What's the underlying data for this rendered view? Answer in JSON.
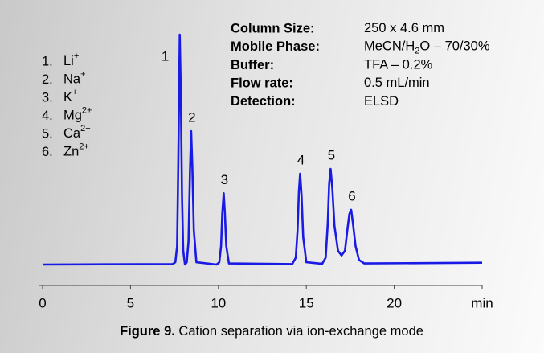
{
  "chart_data": {
    "type": "line",
    "xlim": [
      0,
      25
    ],
    "ylim": [
      -5,
      105
    ],
    "xticks": [
      0,
      5,
      10,
      15,
      20,
      {
        "value": 25,
        "label": "min"
      }
    ],
    "x": [
      0,
      7.4,
      7.55,
      7.65,
      7.72,
      7.8,
      7.86,
      7.93,
      8.0,
      8.1,
      8.2,
      8.3,
      8.38,
      8.45,
      8.52,
      8.6,
      8.75,
      9.9,
      10.05,
      10.15,
      10.22,
      10.3,
      10.37,
      10.45,
      10.6,
      14.2,
      14.4,
      14.5,
      14.58,
      14.65,
      14.73,
      14.82,
      15.0,
      15.9,
      16.1,
      16.22,
      16.3,
      16.38,
      16.48,
      16.6,
      16.8,
      17.0,
      17.2,
      17.35,
      17.45,
      17.55,
      17.65,
      17.8,
      18.0,
      18.3,
      25
    ],
    "series": [
      {
        "color": "#1a1ae6",
        "values": [
          0,
          0.2,
          1,
          8,
          45,
          100,
          75,
          30,
          6,
          0,
          1,
          10,
          40,
          58,
          42,
          15,
          1,
          0,
          1,
          8,
          22,
          31,
          22,
          8,
          0.5,
          0.2,
          3,
          15,
          32,
          39.5,
          30,
          12,
          1,
          0.3,
          3,
          18,
          35,
          41.6,
          33,
          17,
          6,
          4,
          6,
          16,
          22,
          23.8,
          18,
          8,
          2,
          0.5,
          0.8
        ]
      }
    ],
    "peak_labels": [
      "1",
      "2",
      "3",
      "4",
      "5",
      "6"
    ],
    "ions": [
      {
        "number": "1.",
        "name": "Li",
        "charge": "+"
      },
      {
        "number": "2.",
        "name": "Na",
        "charge": "+"
      },
      {
        "number": "3.",
        "name": "K",
        "charge": "+"
      },
      {
        "number": "4.",
        "name": "Mg",
        "charge": "2+"
      },
      {
        "number": "5.",
        "name": "Ca",
        "charge": "2+"
      },
      {
        "number": "6.",
        "name": "Zn",
        "charge": "2+"
      }
    ],
    "conditions": [
      {
        "label": "Column Size:",
        "value": [
          "250 x 4.6 mm"
        ]
      },
      {
        "label": "Mobile Phase:",
        "value": [
          "MeCN/H",
          "2",
          "O – 70/30%"
        ]
      },
      {
        "label": "Buffer:",
        "value": [
          "TFA – 0.2%"
        ]
      },
      {
        "label": "Flow rate:",
        "value": [
          "0.5 mL/min"
        ]
      },
      {
        "label": "Detection:",
        "value": [
          "ELSD"
        ]
      }
    ],
    "caption": {
      "label": "Figure 9.",
      "text": " Cation separation via ion-exchange mode"
    }
  }
}
